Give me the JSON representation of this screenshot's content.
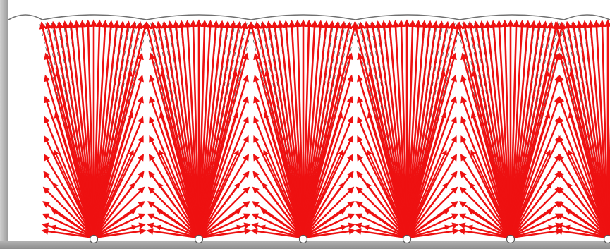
{
  "diagram": {
    "description_free": true,
    "colors": {
      "arrow": "#ee1111",
      "streamline": "#444444",
      "boundary": "#707070",
      "frame": "#a0a0a0",
      "source_fill": "#ffffff",
      "source_stroke": "#555555"
    },
    "sources": [
      1,
      2,
      3,
      4,
      5,
      6
    ],
    "arrow_rays_per_source": 19,
    "arrow_tiers_per_side": 12
  }
}
